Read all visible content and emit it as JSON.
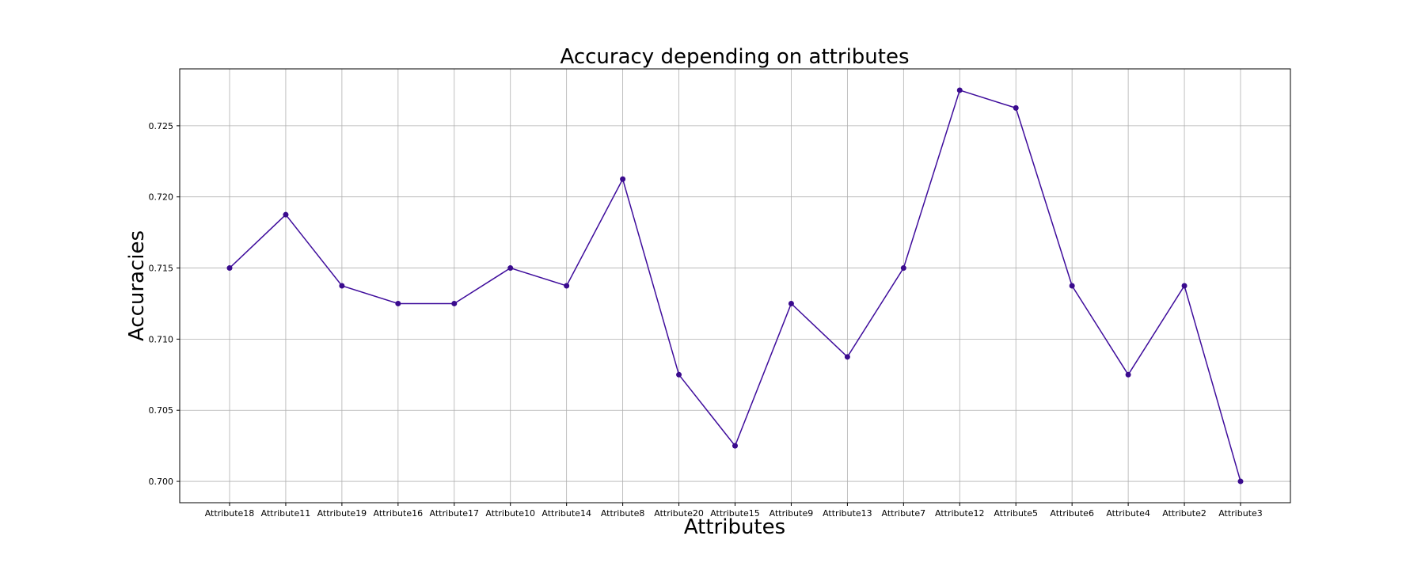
{
  "chart_data": {
    "type": "line",
    "title": "Accuracy depending on attributes",
    "xlabel": "Attributes",
    "ylabel": "Accuracies",
    "categories": [
      "Attribute18",
      "Attribute11",
      "Attribute19",
      "Attribute16",
      "Attribute17",
      "Attribute10",
      "Attribute14",
      "Attribute8",
      "Attribute20",
      "Attribute15",
      "Attribute9",
      "Attribute13",
      "Attribute7",
      "Attribute12",
      "Attribute5",
      "Attribute6",
      "Attribute4",
      "Attribute2",
      "Attribute3"
    ],
    "series": [
      {
        "values": [
          0.715,
          0.71875,
          0.71375,
          0.7125,
          0.7125,
          0.715,
          0.71375,
          0.72125,
          0.7075,
          0.7025,
          0.7125,
          0.70875,
          0.715,
          0.7275,
          0.72625,
          0.71375,
          0.7075,
          0.71375,
          0.7
        ]
      }
    ],
    "yticks": [
      "0.700",
      "0.705",
      "0.710",
      "0.715",
      "0.720",
      "0.725"
    ],
    "ylim": [
      0.6985,
      0.729
    ],
    "grid": true,
    "legend": "none",
    "line_color": "#3f0d9c",
    "marker_color": "#3a0b8e"
  }
}
